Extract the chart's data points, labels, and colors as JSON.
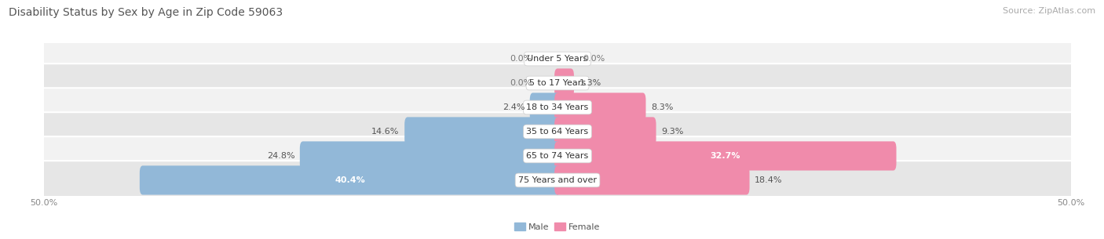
{
  "title": "Disability Status by Sex by Age in Zip Code 59063",
  "source": "Source: ZipAtlas.com",
  "categories": [
    "Under 5 Years",
    "5 to 17 Years",
    "18 to 34 Years",
    "35 to 64 Years",
    "65 to 74 Years",
    "75 Years and over"
  ],
  "male_values": [
    0.0,
    0.0,
    2.4,
    14.6,
    24.8,
    40.4
  ],
  "female_values": [
    0.0,
    1.3,
    8.3,
    9.3,
    32.7,
    18.4
  ],
  "male_color": "#92b8d8",
  "female_color": "#f08bab",
  "row_bg_light": "#f2f2f2",
  "row_bg_dark": "#e6e6e6",
  "xlim": 50.0,
  "legend_male": "Male",
  "legend_female": "Female",
  "title_fontsize": 10,
  "source_fontsize": 8,
  "label_fontsize": 8,
  "category_fontsize": 8,
  "axis_fontsize": 8
}
